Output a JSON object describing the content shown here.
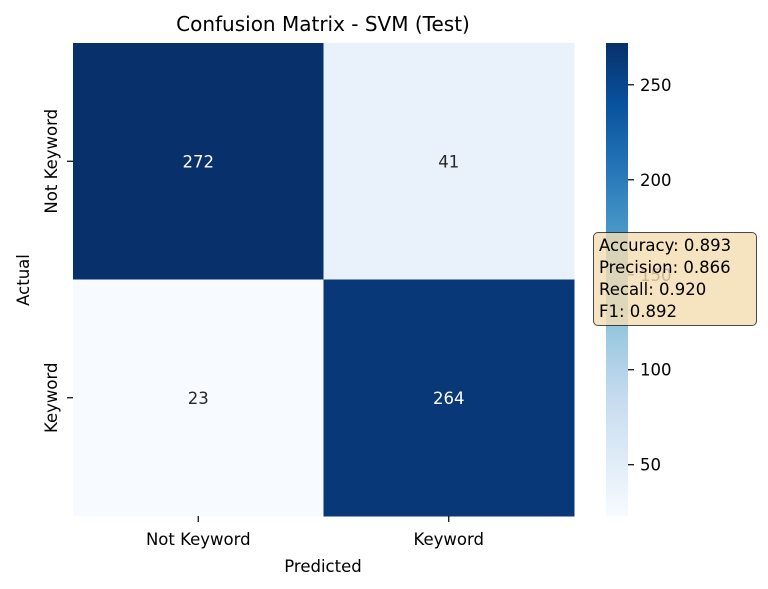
{
  "chart_data": {
    "type": "heatmap",
    "title": "Confusion Matrix - SVM (Test)",
    "xlabel": "Predicted",
    "ylabel": "Actual",
    "x_categories": [
      "Not Keyword",
      "Keyword"
    ],
    "y_categories": [
      "Not Keyword",
      "Keyword"
    ],
    "values": [
      [
        272,
        41
      ],
      [
        23,
        264
      ]
    ],
    "colormap": "Blues",
    "colorbar": {
      "vmin": 23,
      "vmax": 272,
      "ticks": [
        50,
        100,
        150,
        200,
        250
      ]
    },
    "annotations": [
      "Accuracy: 0.893",
      "Precision: 0.866",
      "Recall: 0.920",
      "F1: 0.892"
    ]
  }
}
